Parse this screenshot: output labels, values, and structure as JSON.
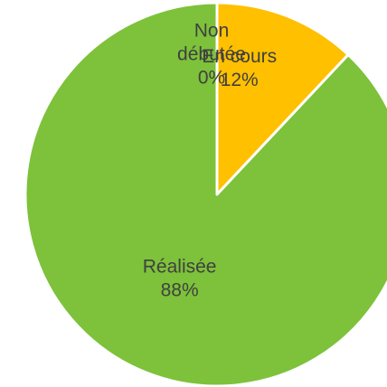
{
  "chart_data": {
    "type": "pie",
    "title": "",
    "start_angle_deg": 0,
    "direction": "clockwise",
    "slices": [
      {
        "category": "Non débutée",
        "value": 0,
        "value_label": "0%",
        "color": "#4472C4"
      },
      {
        "category": "En cours",
        "value": 12,
        "value_label": "12%",
        "color": "#FFC000"
      },
      {
        "category": "Réalisée",
        "value": 88,
        "value_label": "88%",
        "color": "#7DC23A"
      }
    ],
    "slice_border_color": "#FFFFFF",
    "label_color": "#404040",
    "legend": "none"
  }
}
